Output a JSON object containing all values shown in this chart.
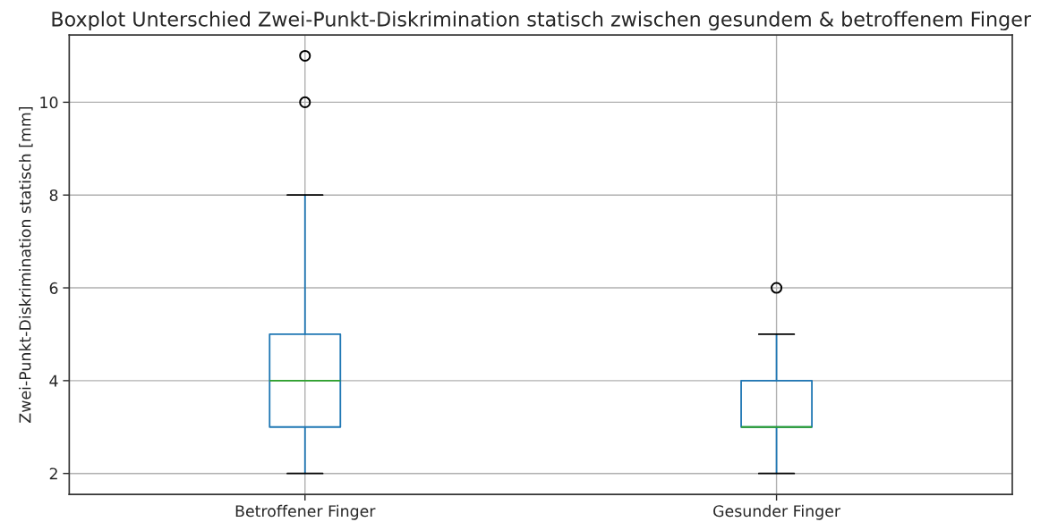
{
  "chart_data": {
    "type": "box",
    "title": "Boxplot Unterschied Zwei-Punkt-Diskrimination statisch zwischen gesundem & betroffenem Finger",
    "ylabel": "Zwei-Punkt-Diskrimination statisch [mm]",
    "categories": [
      "Betroffener Finger",
      "Gesunder Finger"
    ],
    "series": [
      {
        "color": "#1f77b4",
        "boxes": [
          {
            "low": 2,
            "q1": 3,
            "median": 4,
            "q3": 5,
            "high": 8,
            "outliers": [
              10,
              11
            ]
          },
          {
            "low": 2,
            "q1": 3,
            "median": 3,
            "q3": 4,
            "high": 5,
            "outliers": [
              6
            ]
          }
        ]
      }
    ],
    "ylim": [
      1.55,
      11.45
    ],
    "yticks": [
      2,
      4,
      6,
      8,
      10
    ],
    "grid": true
  }
}
